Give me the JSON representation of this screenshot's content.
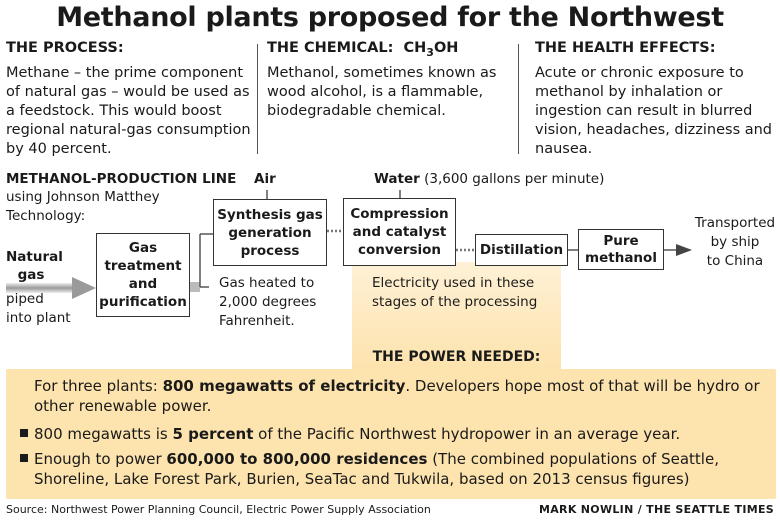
{
  "title": "Methanol plants proposed for the Northwest",
  "process": {
    "heading": "THE PROCESS:",
    "lines": [
      "Methane – the prime component",
      "of natural gas – would be used as",
      "a feedstock. This would boost",
      "regional natural-gas consumption",
      "by 40 percent."
    ]
  },
  "chemical": {
    "heading": "THE CHEMICAL:",
    "formula_prefix": "CH",
    "formula_sub": "3",
    "formula_suffix": "OH",
    "lines": [
      "Methanol, sometimes known as",
      "wood alcohol, is a flammable,",
      "biodegradable chemical."
    ]
  },
  "health": {
    "heading": "THE HEALTH EFFECTS:",
    "lines": [
      "Acute or chronic exposure to",
      "methanol by inhalation or",
      "ingestion can result in blurred",
      "vision, headaches, dizziness and",
      "nausea."
    ]
  },
  "production": {
    "heading": "METHANOL-PRODUCTION LINE",
    "subheading_lines": [
      "using Johnson Matthey",
      "Technology:"
    ],
    "input_label_lines": [
      "Natural",
      "gas"
    ],
    "input_note_lines": [
      "piped",
      "into plant"
    ],
    "box1_lines": [
      "Gas",
      "treatment",
      "and",
      "purification"
    ],
    "air_label": "Air",
    "box2_lines": [
      "Synthesis gas",
      "generation",
      "process"
    ],
    "box2_note_lines": [
      "Gas heated to",
      "2,000 degrees",
      "Fahrenheit."
    ],
    "water_label": "Water",
    "water_note": "(3,600 gallons per minute)",
    "box3_lines": [
      "Compression",
      "and catalyst",
      "conversion"
    ],
    "box4_lines": [
      "Distillation"
    ],
    "box5_lines": [
      "Pure",
      "methanol"
    ],
    "electricity_note_lines": [
      "Electricity used in these",
      "stages of the processing"
    ],
    "output_lines": [
      "Transported",
      "by ship",
      "to China"
    ]
  },
  "power": {
    "heading": "THE POWER NEEDED:",
    "intro_prefix": "For three plants: ",
    "intro_bold": "800 megawatts of electricity",
    "intro_suffix": ". Developers hope most of that will be hydro or",
    "intro_line2": "other renewable power.",
    "bullet1_prefix": "800 megawatts is ",
    "bullet1_bold": "5 percent",
    "bullet1_suffix": " of the Pacific Northwest hydropower in an average year.",
    "bullet2_prefix": "Enough to power ",
    "bullet2_bold": "600,000 to 800,000 residences",
    "bullet2_suffix": " (The combined populations of Seattle,",
    "bullet2_line2": "Shoreline, Lake Forest Park, Burien, SeaTac and Tukwila, based on 2013 census figures)"
  },
  "footer": {
    "source": "Source: Northwest Power Planning Council, Electric Power Supply Association",
    "credit": "MARK NOWLIN / THE SEATTLE TIMES"
  },
  "colors": {
    "highlight": "#fde3ad",
    "highlight_light": "#fef1d6",
    "line": "#333333"
  }
}
